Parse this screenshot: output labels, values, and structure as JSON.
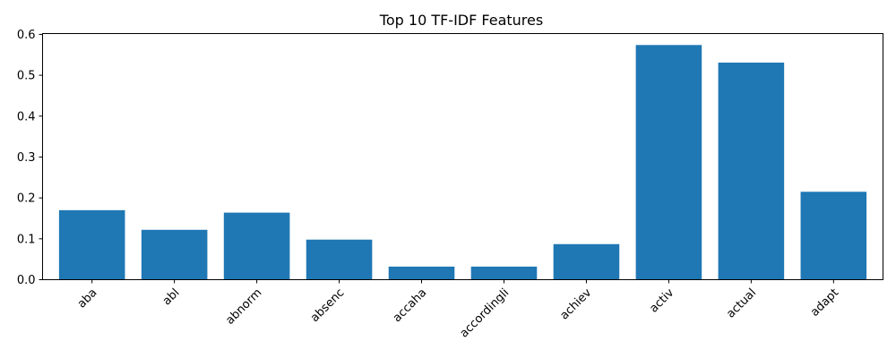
{
  "chart_data": {
    "type": "bar",
    "title": "Top 10 TF-IDF Features",
    "xlabel": "",
    "ylabel": "",
    "categories": [
      "aba",
      "abl",
      "abnorm",
      "absenc",
      "accaha",
      "accordingli",
      "achiev",
      "activ",
      "actual",
      "adapt"
    ],
    "values": [
      0.17,
      0.122,
      0.164,
      0.098,
      0.032,
      0.032,
      0.087,
      0.574,
      0.531,
      0.215
    ],
    "ylim": [
      0,
      0.602
    ],
    "yticks": [
      0.0,
      0.1,
      0.2,
      0.3,
      0.4,
      0.5,
      0.6
    ],
    "ytick_labels": [
      "0.0",
      "0.1",
      "0.2",
      "0.3",
      "0.4",
      "0.5",
      "0.6"
    ],
    "bar_color": "#1f77b4",
    "grid": false,
    "xtick_rotation_deg": 45
  }
}
